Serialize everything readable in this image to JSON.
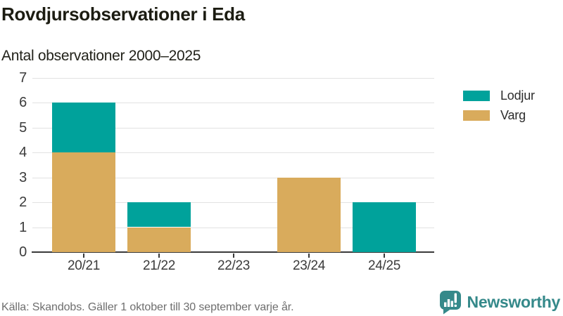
{
  "title": "Rovdjursobservationer i Eda",
  "subtitle": "Antal observationer 2000–2025",
  "footer": {
    "source": "Källa: Skandobs. Gäller 1 oktober till 30 september varje år."
  },
  "branding": {
    "name": "Newsworthy",
    "icon": "bar-chart-speech-bubble-icon",
    "color": "#35898a"
  },
  "legend": {
    "position": "right",
    "items": [
      {
        "label": "Lodjur",
        "color": "#00a29b"
      },
      {
        "label": "Varg",
        "color": "#d9ab5c"
      }
    ]
  },
  "chart_data": {
    "type": "bar",
    "stacked": true,
    "title": "Rovdjursobservationer i Eda",
    "subtitle": "Antal observationer 2000–2025",
    "xlabel": "",
    "ylabel": "",
    "categories": [
      "20/21",
      "21/22",
      "22/23",
      "23/24",
      "24/25"
    ],
    "series": [
      {
        "name": "Lodjur",
        "color": "#00a29b",
        "values": [
          2,
          1,
          0,
          0,
          2
        ]
      },
      {
        "name": "Varg",
        "color": "#d9ab5c",
        "values": [
          4,
          1,
          0,
          3,
          0
        ]
      }
    ],
    "stack_order_bottom_to_top": [
      "Varg",
      "Lodjur"
    ],
    "totals": [
      6,
      2,
      0,
      3,
      2
    ],
    "ylim": [
      0,
      7
    ],
    "yticks": [
      0,
      1,
      2,
      3,
      4,
      5,
      6,
      7
    ],
    "grid": true,
    "legend_position": "right"
  }
}
